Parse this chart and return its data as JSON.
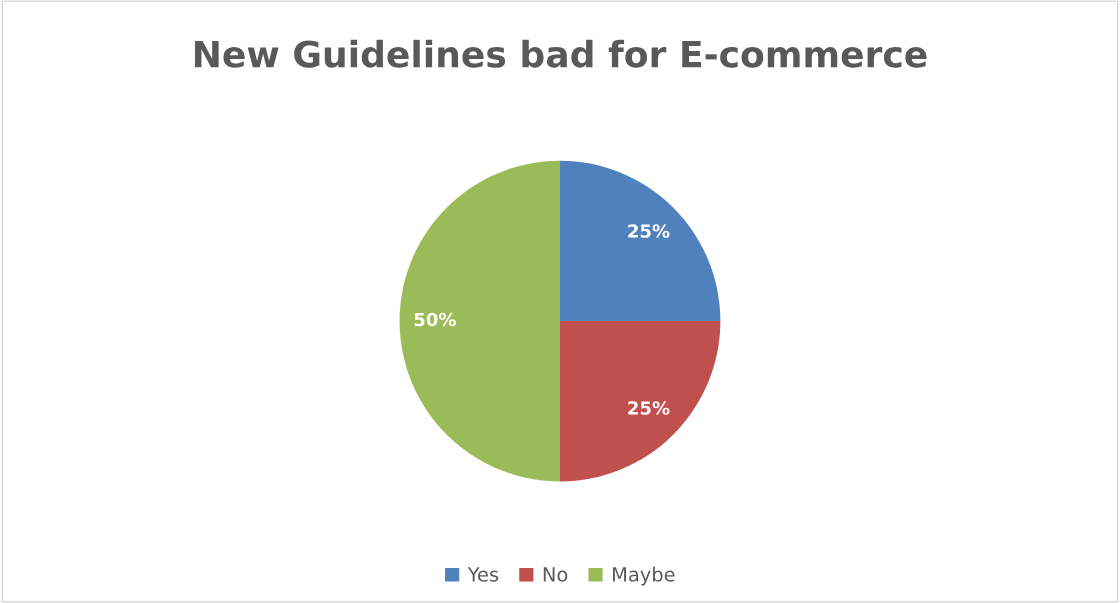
{
  "chart_data": {
    "type": "pie",
    "title": "New Guidelines bad for E-commerce",
    "categories": [
      "Yes",
      "No",
      "Maybe"
    ],
    "values": [
      25,
      25,
      50
    ],
    "colors": [
      "#4f81bd",
      "#c0504d",
      "#9bbb59"
    ],
    "value_labels": [
      "25%",
      "25%",
      "50%"
    ],
    "legend": "bottom"
  }
}
